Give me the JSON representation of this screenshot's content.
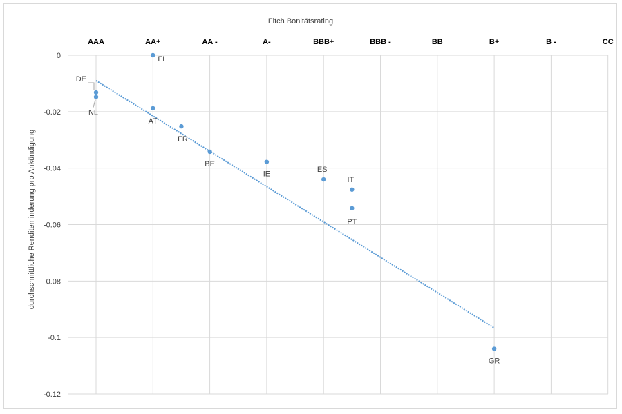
{
  "chart_data": {
    "type": "scatter",
    "title": "",
    "x_axis_title": "Fitch Bonitätsrating",
    "ylabel": "durchschnittliche Renditeminderung pro Ankündigung",
    "x_categories": [
      "AAA",
      "AA+",
      "AA -",
      "A-",
      "BBB+",
      "BBB -",
      "BB",
      "B+",
      "B -",
      "CC"
    ],
    "x_axis_position": "top",
    "ylim": [
      -0.12,
      0
    ],
    "y_ticks": [
      0,
      -0.02,
      -0.04,
      -0.06,
      -0.08,
      -0.1,
      -0.12
    ],
    "y_tick_labels": [
      "0",
      "-0.02",
      "-0.04",
      "-0.06",
      "-0.08",
      "-0.1",
      "-0.12"
    ],
    "grid": true,
    "legend": "none",
    "series": [
      {
        "points": [
          {
            "label": "FI",
            "x": 1,
            "y": 0.0
          },
          {
            "label": "DE",
            "x": 0,
            "y": -0.0132
          },
          {
            "label": "NL",
            "x": 0,
            "y": -0.0148
          },
          {
            "label": "AT",
            "x": 1,
            "y": -0.0188
          },
          {
            "label": "FR",
            "x": 1.5,
            "y": -0.0252
          },
          {
            "label": "BE",
            "x": 2,
            "y": -0.0342
          },
          {
            "label": "IE",
            "x": 3,
            "y": -0.0378
          },
          {
            "label": "ES",
            "x": 4,
            "y": -0.044
          },
          {
            "label": "IT",
            "x": 4.5,
            "y": -0.0476
          },
          {
            "label": "PT",
            "x": 4.5,
            "y": -0.0542
          },
          {
            "label": "GR",
            "x": 7,
            "y": -0.104
          }
        ]
      }
    ],
    "trendline": {
      "type": "linear",
      "x": [
        0,
        7
      ],
      "y": [
        -0.009,
        -0.0966
      ]
    },
    "colors": {
      "points": "#5b9bd5",
      "trendline": "#5b9bd5",
      "grid": "#d9d9d9"
    }
  }
}
